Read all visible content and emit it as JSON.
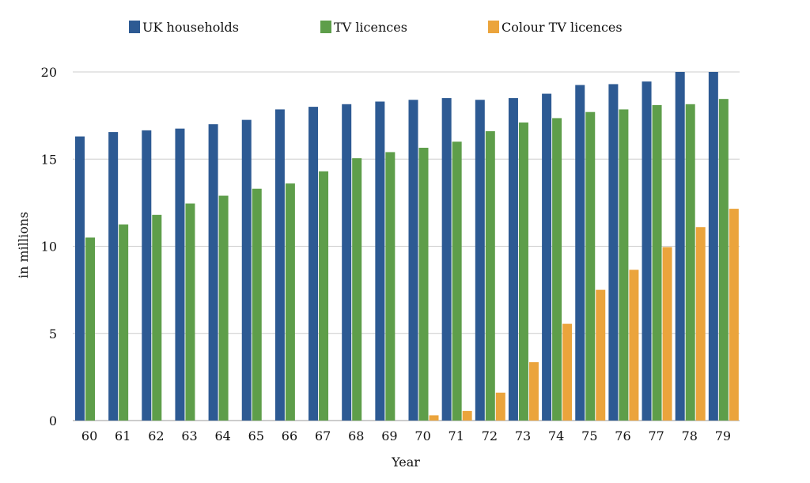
{
  "chart_data": {
    "type": "bar",
    "title": "",
    "xlabel": "Year",
    "ylabel": "in millions",
    "ylim": [
      0,
      20
    ],
    "yticks": [
      0,
      5,
      10,
      15,
      20
    ],
    "grid": true,
    "legend_position": "top-center",
    "categories": [
      "60",
      "61",
      "62",
      "63",
      "64",
      "65",
      "66",
      "67",
      "68",
      "69",
      "70",
      "71",
      "72",
      "73",
      "74",
      "75",
      "76",
      "77",
      "78",
      "79"
    ],
    "series": [
      {
        "name": "UK households",
        "color": "#2D5A93",
        "values": [
          16.3,
          16.55,
          16.65,
          16.75,
          17.0,
          17.25,
          17.85,
          18.0,
          18.15,
          18.3,
          18.4,
          18.5,
          18.4,
          18.5,
          18.75,
          19.25,
          19.3,
          19.45,
          20.0,
          20.0
        ]
      },
      {
        "name": "TV licences",
        "color": "#5E9E4A",
        "values": [
          10.5,
          11.25,
          11.8,
          12.45,
          12.9,
          13.3,
          13.6,
          14.3,
          15.05,
          15.4,
          15.65,
          16.0,
          16.6,
          17.1,
          17.35,
          17.7,
          17.85,
          18.1,
          18.15,
          18.45
        ]
      },
      {
        "name": "Colour TV licences",
        "color": "#EBA43C",
        "values": [
          0,
          0,
          0,
          0,
          0,
          0,
          0,
          0,
          0,
          0,
          0.3,
          0.55,
          1.6,
          3.35,
          5.55,
          7.5,
          8.65,
          9.95,
          11.1,
          12.15
        ]
      }
    ]
  }
}
